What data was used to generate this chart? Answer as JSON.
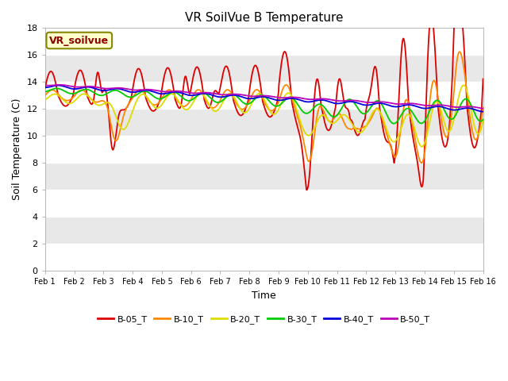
{
  "title": "VR SoilVue B Temperature",
  "xlabel": "Time",
  "ylabel": "Soil Temperature (C)",
  "ylim": [
    0,
    18
  ],
  "xlim": [
    0,
    15
  ],
  "xtick_labels": [
    "Feb 1",
    "Feb 2",
    "Feb 3",
    "Feb 4",
    "Feb 5",
    "Feb 6",
    "Feb 7",
    "Feb 8",
    "Feb 9",
    "Feb 10",
    "Feb 11",
    "Feb 12",
    "Feb 13",
    "Feb 14",
    "Feb 15",
    "Feb 16"
  ],
  "ytick_vals": [
    0,
    2,
    4,
    6,
    8,
    10,
    12,
    14,
    16,
    18
  ],
  "legend_label": "VR_soilvue",
  "series_colors": {
    "B-05_T": "#dd0000",
    "B-10_T": "#ff8800",
    "B-20_T": "#dddd00",
    "B-30_T": "#00cc00",
    "B-40_T": "#0000dd",
    "B-50_T": "#bb00bb"
  },
  "series_names": [
    "B-05_T",
    "B-10_T",
    "B-20_T",
    "B-30_T",
    "B-40_T",
    "B-50_T"
  ],
  "background_color": "#ffffff",
  "plot_bg_even": "#e8e8e8",
  "plot_bg_odd": "#ffffff",
  "title_fontsize": 11,
  "axis_label_fontsize": 9,
  "tick_fontsize": 8
}
